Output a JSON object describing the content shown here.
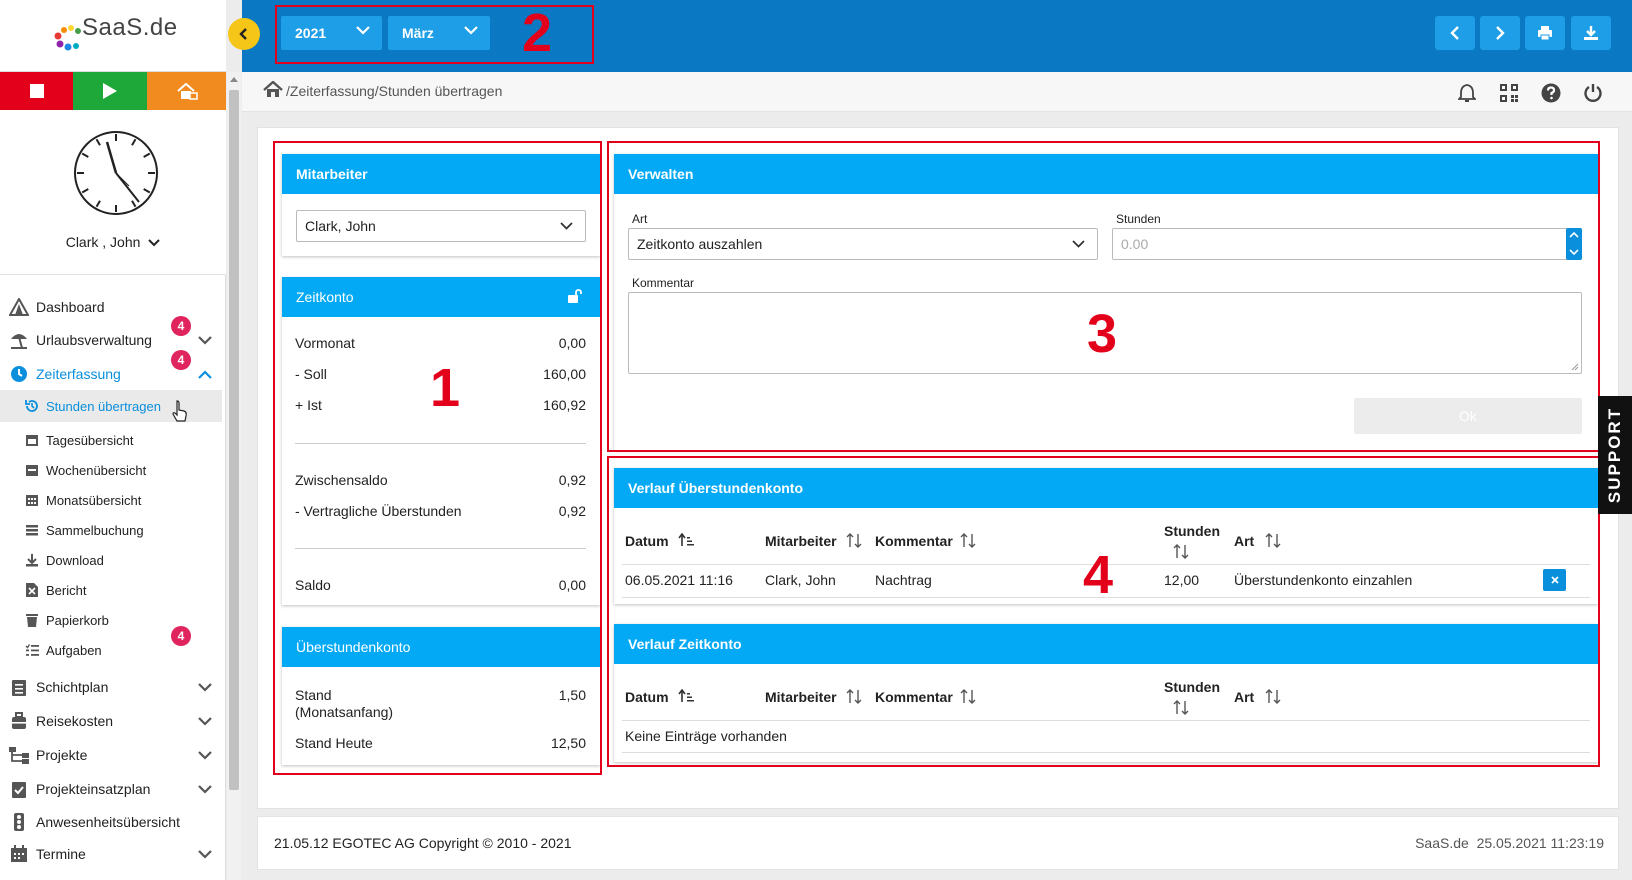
{
  "brand": {
    "logo_text": "SaaS.de"
  },
  "sidebar": {
    "user_name": "Clark , John",
    "items": [
      {
        "label": "Dashboard"
      },
      {
        "label": "Urlaubsverwaltung",
        "badge": "4"
      },
      {
        "label": "Zeiterfassung",
        "badge": "4"
      },
      {
        "label": "Stunden übertragen"
      },
      {
        "label": "Tagesübersicht"
      },
      {
        "label": "Wochenübersicht"
      },
      {
        "label": "Monatsübersicht"
      },
      {
        "label": "Sammelbuchung"
      },
      {
        "label": "Download"
      },
      {
        "label": "Bericht"
      },
      {
        "label": "Papierkorb"
      },
      {
        "label": "Aufgaben",
        "badge": "4"
      },
      {
        "label": "Schichtplan"
      },
      {
        "label": "Reisekosten"
      },
      {
        "label": "Projekte"
      },
      {
        "label": "Projekteinsatzplan"
      },
      {
        "label": "Anwesenheitsübersicht"
      },
      {
        "label": "Termine"
      }
    ]
  },
  "topbar": {
    "year": "2021",
    "month": "März"
  },
  "breadcrumb": "/Zeiterfassung/Stunden übertragen",
  "annotations": {
    "n1": "1",
    "n2": "2",
    "n3": "3",
    "n4": "4"
  },
  "mitarbeiter": {
    "title": "Mitarbeiter",
    "selected": "Clark, John"
  },
  "zeitkonto": {
    "title": "Zeitkonto",
    "rows": [
      {
        "label": "Vormonat",
        "value": "0,00"
      },
      {
        "label": "- Soll",
        "value": "160,00"
      },
      {
        "label": "+ Ist",
        "value": "160,92"
      },
      {
        "label": "Zwischensaldo",
        "value": "0,92"
      },
      {
        "label": "- Vertragliche Überstunden",
        "value": "0,92"
      },
      {
        "label": "Saldo",
        "value": "0,00"
      }
    ]
  },
  "ueberstundenkonto": {
    "title": "Überstundenkonto",
    "stand_label_1": "Stand",
    "stand_label_2": "(Monatsanfang)",
    "stand_value": "1,50",
    "heute_label": "Stand Heute",
    "heute_value": "12,50"
  },
  "verwalten": {
    "title": "Verwalten",
    "art_label": "Art",
    "art_value": "Zeitkonto auszahlen",
    "stunden_label": "Stunden",
    "stunden_placeholder": "0.00",
    "kommentar_label": "Kommentar",
    "ok_label": "Ok"
  },
  "verlauf_ueberstunden": {
    "title": "Verlauf Überstundenkonto",
    "columns": [
      "Datum",
      "Mitarbeiter",
      "Kommentar",
      "Stunden",
      "Art"
    ],
    "rows": [
      {
        "datum": "06.05.2021 11:16",
        "mitarbeiter": "Clark, John",
        "kommentar": "Nachtrag",
        "stunden": "12,00",
        "art": "Überstundenkonto einzahlen"
      }
    ]
  },
  "verlauf_zeitkonto": {
    "title": "Verlauf Zeitkonto",
    "columns": [
      "Datum",
      "Mitarbeiter",
      "Kommentar",
      "Stunden",
      "Art"
    ],
    "empty": "Keine Einträge vorhanden"
  },
  "footer": {
    "left": "21.05.12 EGOTEC AG Copyright © 2010 - 2021",
    "right": "SaaS.de  25.05.2021 11:23:19"
  },
  "support": "SUPPORT",
  "colors": {
    "topbar": "#0a78c2",
    "header": "#03a9f4",
    "stop": "#e3001b",
    "play": "#1fa83a",
    "home": "#f18a1f",
    "badge": "#e0245e",
    "annotation": "#e3001b"
  }
}
